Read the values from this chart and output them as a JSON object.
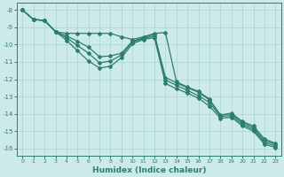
{
  "xlabel": "Humidex (Indice chaleur)",
  "bg_color": "#cceae7",
  "grid_color": "#aad4d0",
  "line_color": "#2e7d72",
  "xlim": [
    -0.5,
    23.5
  ],
  "ylim": [
    -16.4,
    -7.6
  ],
  "xticks": [
    0,
    1,
    2,
    3,
    4,
    5,
    6,
    7,
    8,
    9,
    10,
    11,
    12,
    13,
    14,
    15,
    16,
    17,
    18,
    19,
    20,
    21,
    22,
    23
  ],
  "yticks": [
    -8,
    -9,
    -10,
    -11,
    -12,
    -13,
    -14,
    -15,
    -16
  ],
  "series": [
    [
      -8.0,
      -8.55,
      -8.6,
      -9.25,
      -9.35,
      -9.35,
      -9.35,
      -9.35,
      -9.35,
      -9.55,
      -9.7,
      -9.55,
      -9.35,
      -9.3,
      -12.15,
      -12.45,
      -12.7,
      -13.15,
      -14.1,
      -13.95,
      -14.45,
      -14.7,
      -15.45,
      -15.7
    ],
    [
      -8.0,
      -8.55,
      -8.6,
      -9.25,
      -9.5,
      -9.8,
      -10.15,
      -10.7,
      -10.65,
      -10.5,
      -9.8,
      -9.6,
      -9.4,
      -11.9,
      -12.2,
      -12.5,
      -12.75,
      -13.2,
      -14.05,
      -14.0,
      -14.5,
      -14.8,
      -15.55,
      -15.75
    ],
    [
      -8.0,
      -8.55,
      -8.6,
      -9.25,
      -9.6,
      -10.05,
      -10.5,
      -11.05,
      -10.95,
      -10.6,
      -9.85,
      -9.65,
      -9.5,
      -12.05,
      -12.35,
      -12.65,
      -12.95,
      -13.35,
      -14.15,
      -14.1,
      -14.6,
      -14.9,
      -15.65,
      -15.85
    ],
    [
      -8.0,
      -8.55,
      -8.6,
      -9.25,
      -9.75,
      -10.35,
      -10.95,
      -11.35,
      -11.25,
      -10.75,
      -9.95,
      -9.7,
      -9.6,
      -12.25,
      -12.55,
      -12.8,
      -13.1,
      -13.55,
      -14.25,
      -14.2,
      -14.7,
      -15.0,
      -15.75,
      -15.95
    ]
  ]
}
